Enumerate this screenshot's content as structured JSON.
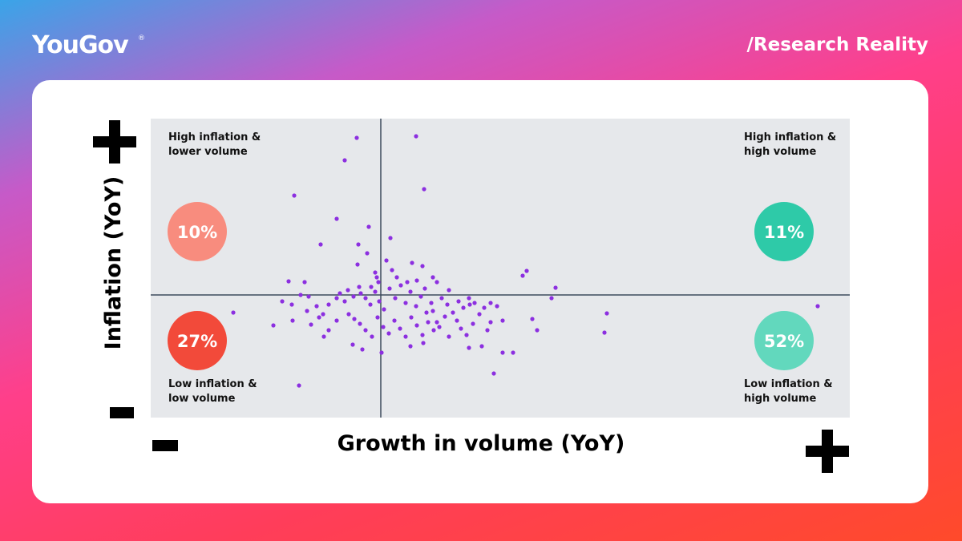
{
  "header": {
    "brand": "YouGov",
    "brand_mark": "®",
    "tagline": "/Research Reality"
  },
  "chart_data": {
    "type": "scatter",
    "x_label": "Growth in volume (YoY)",
    "y_label": "Inflation (YoY)",
    "xlim": [
      -28.7,
      58.5
    ],
    "ylim": [
      -15.3,
      22
    ],
    "color": "#8c2fe0",
    "x": [
      -3,
      4.4,
      -4.5,
      5.4,
      -10.8,
      -5.5,
      -1.5,
      1.2,
      -7.5,
      -2.8,
      -1.7,
      0.7,
      3.9,
      5.2,
      -2.9,
      -0.7,
      18.2,
      17.7,
      -11.5,
      -9.5,
      21.8,
      21.3,
      -18.4,
      54.5,
      28.2,
      27.9,
      -13.4,
      -10.2,
      14.1,
      15.2,
      16.5,
      12.6,
      11,
      10.7,
      18.9,
      19.5,
      -12.3,
      -11.1,
      -9,
      -8,
      -7.2,
      -6.5,
      -5.5,
      -4.5,
      -3.4,
      -2.5,
      -1.9,
      -1.3,
      -0.7,
      -0.2,
      0.4,
      1.1,
      1.8,
      2.5,
      3.1,
      3.7,
      4.4,
      5,
      5.7,
      6.3,
      7,
      7.6,
      8.3,
      9,
      9.7,
      10.3,
      11.1,
      11.7,
      12.3,
      12.9,
      13.7,
      14.5,
      15.2,
      -4,
      -3.3,
      -2.6,
      -1.9,
      -1.1,
      -0.4,
      0.3,
      1,
      1.7,
      2.4,
      3.1,
      3.8,
      4.5,
      5.2,
      5.9,
      6.6,
      7.3,
      -5.5,
      -6.5,
      -7.7,
      -8.7,
      -7.1,
      -3.5,
      -2.3,
      0.1,
      3.7,
      5.3,
      8.5,
      10,
      11.5,
      13.3,
      6.5,
      5.5,
      3.3,
      2,
      -0.3,
      -1.2,
      -2.7,
      -4.1,
      -5.1,
      -9.2,
      -11,
      -10,
      8.5,
      7,
      4.5,
      6.5,
      11,
      13.7,
      9.5,
      8,
      -0.5,
      1.4
    ],
    "values": [
      19.6,
      19.8,
      16.8,
      13.2,
      12.4,
      9.5,
      8.5,
      7.1,
      6.3,
      6.3,
      5.2,
      4.3,
      4,
      3.6,
      3.8,
      2.8,
      3,
      2.4,
      1.7,
      1.6,
      0.9,
      -0.4,
      -2.2,
      -1.4,
      -2.3,
      -4.7,
      -3.8,
      -11.3,
      -9.8,
      -7.2,
      -7.2,
      -6.4,
      -6.6,
      -5,
      -3,
      -4.4,
      -0.8,
      -1.2,
      -0.2,
      -1.4,
      -2.4,
      -1.2,
      -0.4,
      -0.8,
      -0.2,
      0.2,
      -0.4,
      -1.2,
      0.4,
      -0.8,
      -1.8,
      0.8,
      -0.4,
      1.2,
      -1,
      0.4,
      -1.4,
      -0.2,
      -2.2,
      -1,
      -3.4,
      -0.4,
      -1.2,
      -2.2,
      -0.8,
      -1.6,
      -1.2,
      -1,
      -2.4,
      -1.6,
      -3.4,
      -1.4,
      -3.2,
      -2.4,
      -3,
      -3.6,
      -4.4,
      -5.2,
      -2.8,
      -4,
      -4.8,
      -3.2,
      -4.2,
      -5.2,
      -2.8,
      -3.8,
      -5,
      -3.4,
      -4.4,
      -4,
      -3.2,
      -4.4,
      -2.8,
      -3.7,
      -5.2,
      -6.2,
      -6.8,
      -7.2,
      -6.4,
      -6,
      -5.2,
      -4.2,
      -3.6,
      -4.4,
      -2,
      0.8,
      1.6,
      2.2,
      1.6,
      1,
      1,
      0.6,
      0.2,
      -2,
      -3.2,
      0,
      0.6,
      1.6,
      1.8,
      2.2,
      -0.4,
      -1,
      -3.2,
      -2.7,
      2.2,
      3.1
    ],
    "quadrants": [
      {
        "label": "High inflation & lower volume",
        "value": 10,
        "value_label": "10%",
        "color": "#f88c7e"
      },
      {
        "label": "High inflation & high volume",
        "value": 11,
        "value_label": "11%",
        "color": "#2ecaa8"
      },
      {
        "label": "Low inflation & low volume",
        "value": 27,
        "value_label": "27%",
        "color": "#f24a3a"
      },
      {
        "label": "Low inflation & high volume",
        "value": 52,
        "value_label": "52%",
        "color": "#62d8bd"
      }
    ]
  }
}
